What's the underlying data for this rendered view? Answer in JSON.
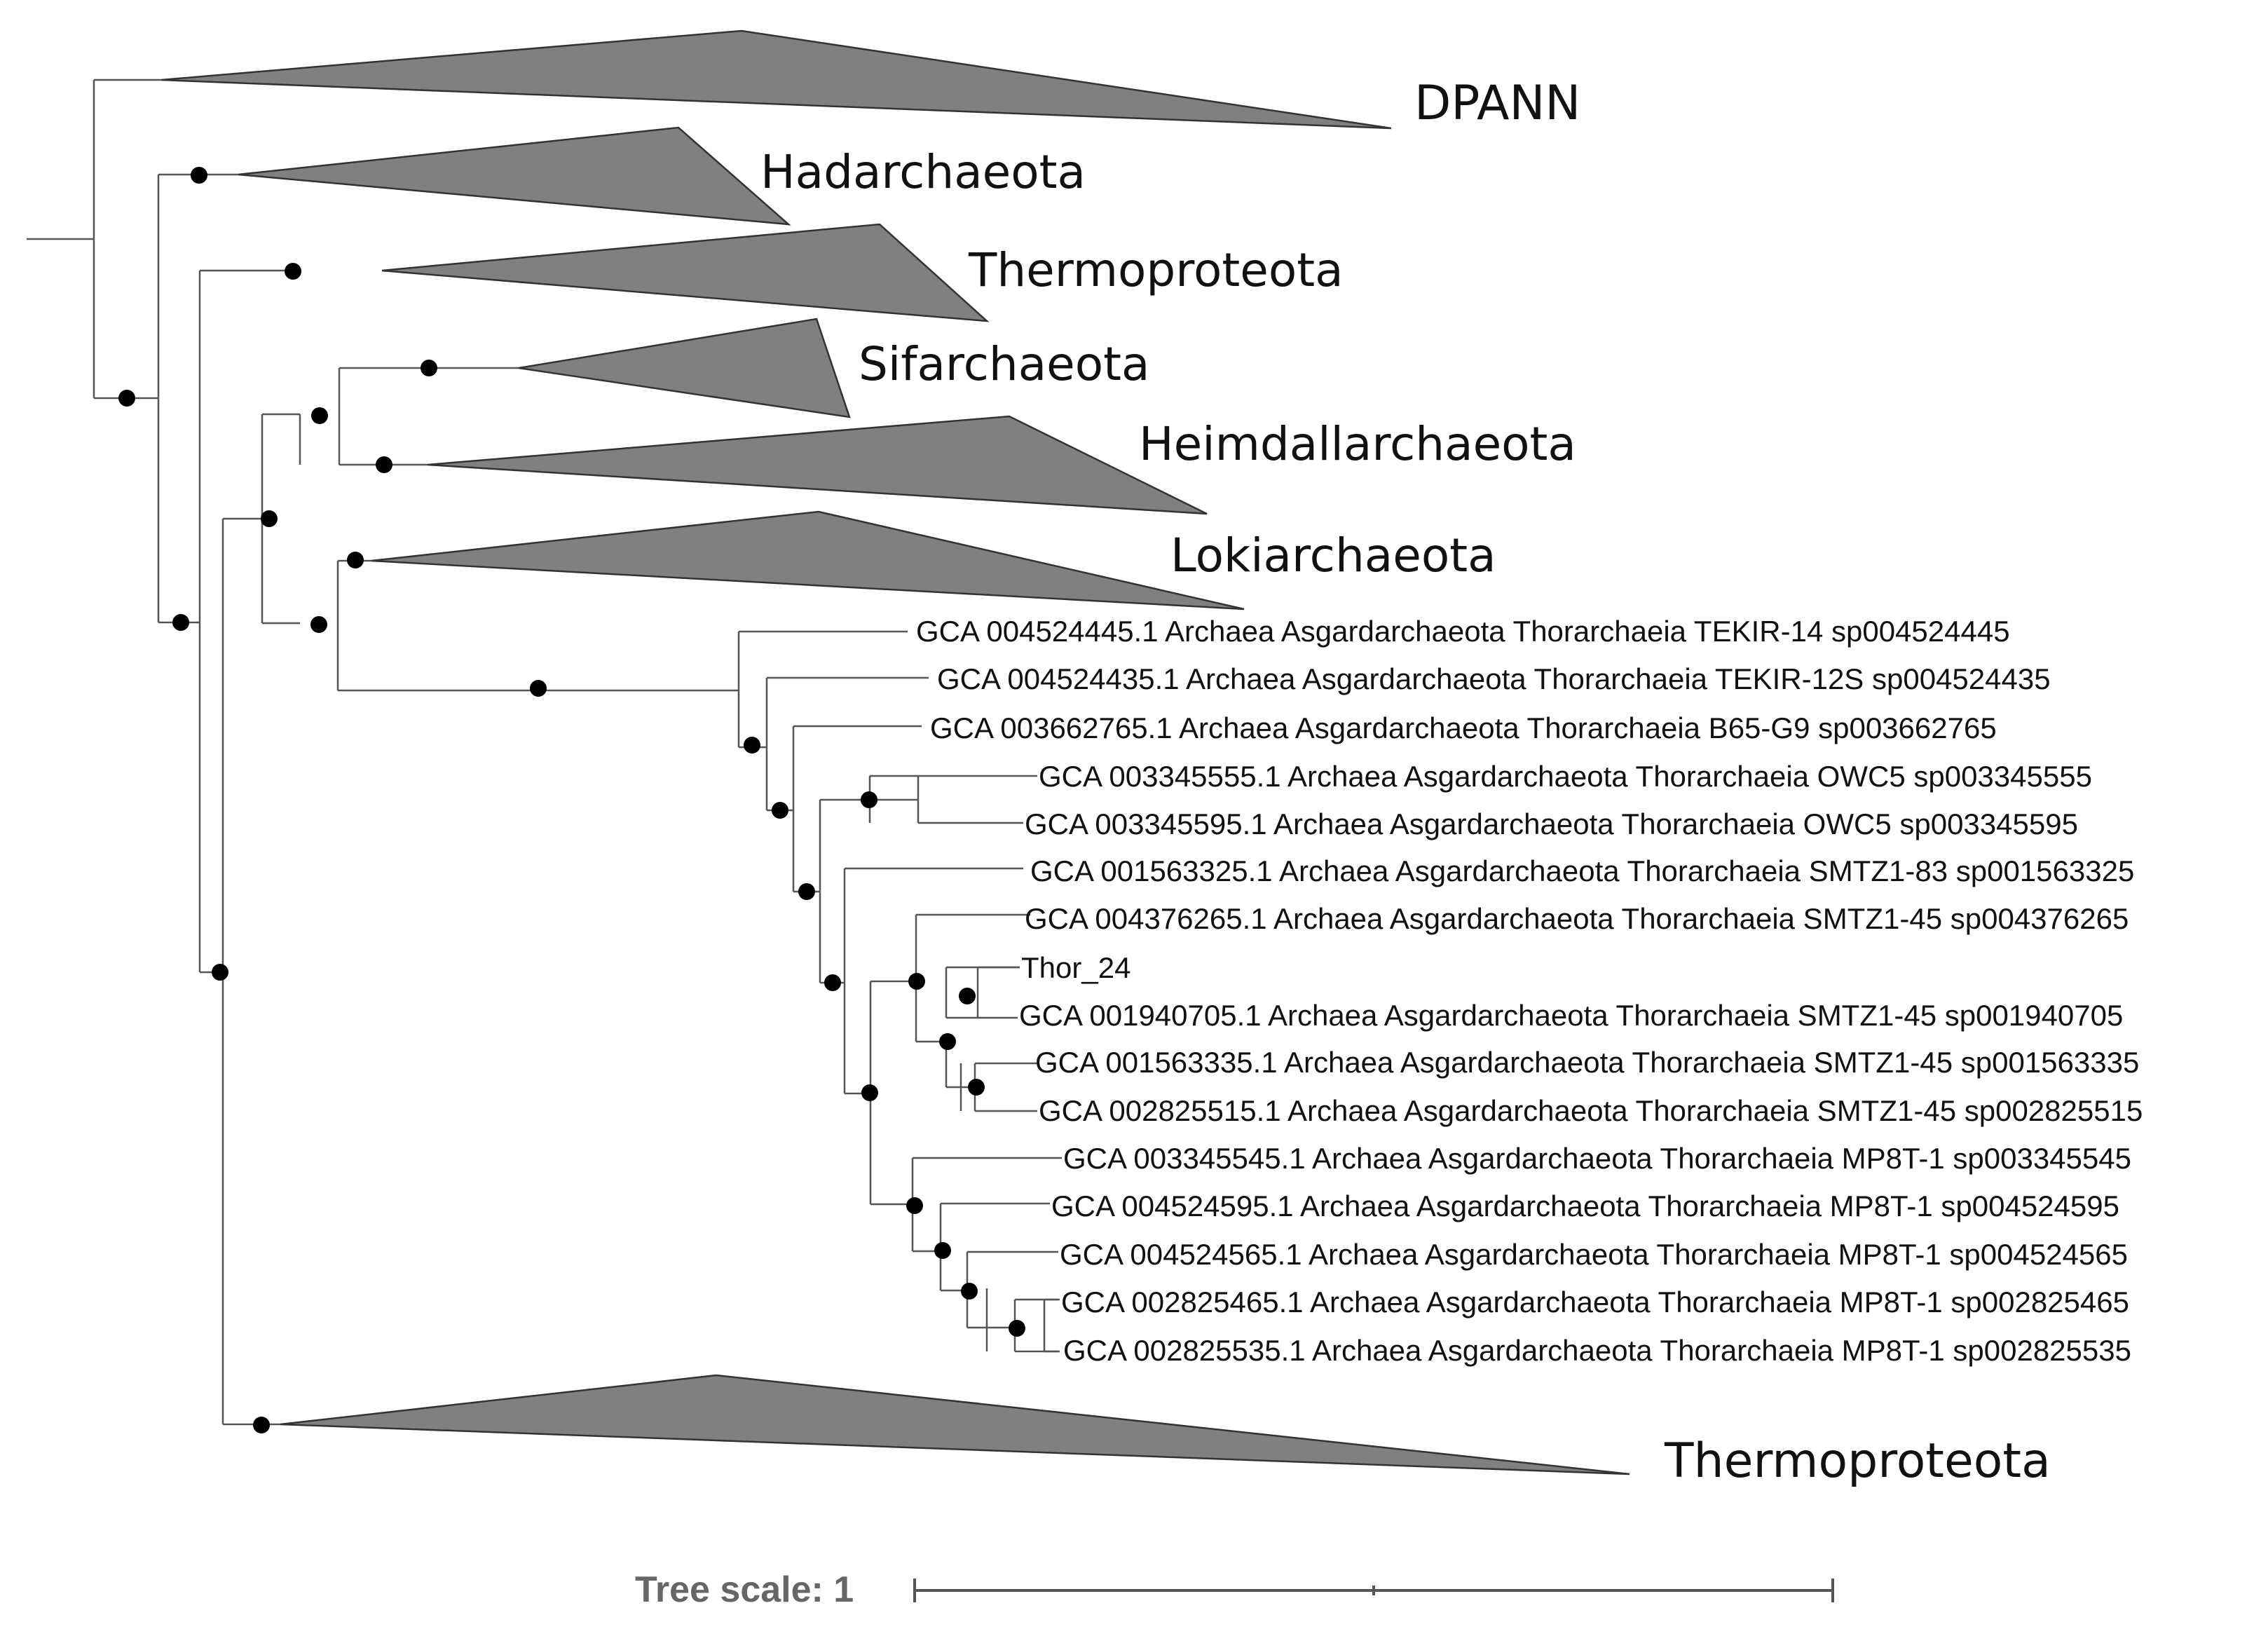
{
  "figure": {
    "type": "phylogenetic-tree",
    "collapsed_clades": [
      "DPANN",
      "Hadarchaeota",
      "Thermoproteota",
      "Sifarchaeota",
      "Heimdallarchaeota",
      "Lokiarchaeota",
      "Thermoproteota"
    ],
    "leaves": [
      "GCA 004524445.1 Archaea Asgardarchaeota Thorarchaeia TEKIR-14 sp004524445",
      "GCA 004524435.1 Archaea Asgardarchaeota Thorarchaeia TEKIR-12S sp004524435",
      "GCA 003662765.1 Archaea Asgardarchaeota Thorarchaeia B65-G9 sp003662765",
      "GCA 003345555.1 Archaea Asgardarchaeota Thorarchaeia OWC5 sp003345555",
      "GCA 003345595.1 Archaea Asgardarchaeota Thorarchaeia OWC5 sp003345595",
      "GCA 001563325.1 Archaea Asgardarchaeota Thorarchaeia SMTZ1-83 sp001563325",
      "GCA 004376265.1 Archaea Asgardarchaeota Thorarchaeia SMTZ1-45 sp004376265",
      "Thor_24",
      "GCA 001940705.1 Archaea Asgardarchaeota Thorarchaeia SMTZ1-45 sp001940705",
      "GCA 001563335.1 Archaea Asgardarchaeota Thorarchaeia SMTZ1-45 sp001563335",
      "GCA 002825515.1 Archaea Asgardarchaeota Thorarchaeia SMTZ1-45 sp002825515",
      "GCA 003345545.1 Archaea Asgardarchaeota Thorarchaeia MP8T-1 sp003345545",
      "GCA 004524595.1 Archaea Asgardarchaeota Thorarchaeia MP8T-1 sp004524595",
      "GCA 004524565.1 Archaea Asgardarchaeota Thorarchaeia MP8T-1 sp004524565",
      "GCA 002825465.1 Archaea Asgardarchaeota Thorarchaeia MP8T-1 sp002825465",
      "GCA 002825535.1 Archaea Asgardarchaeota Thorarchaeia MP8T-1 sp002825535"
    ],
    "tree_scale_label": "Tree scale: 1"
  },
  "colors": {
    "branch": "#555555",
    "clade_fill": "#808080",
    "node_dot": "#000000",
    "scale_text": "#666666"
  }
}
